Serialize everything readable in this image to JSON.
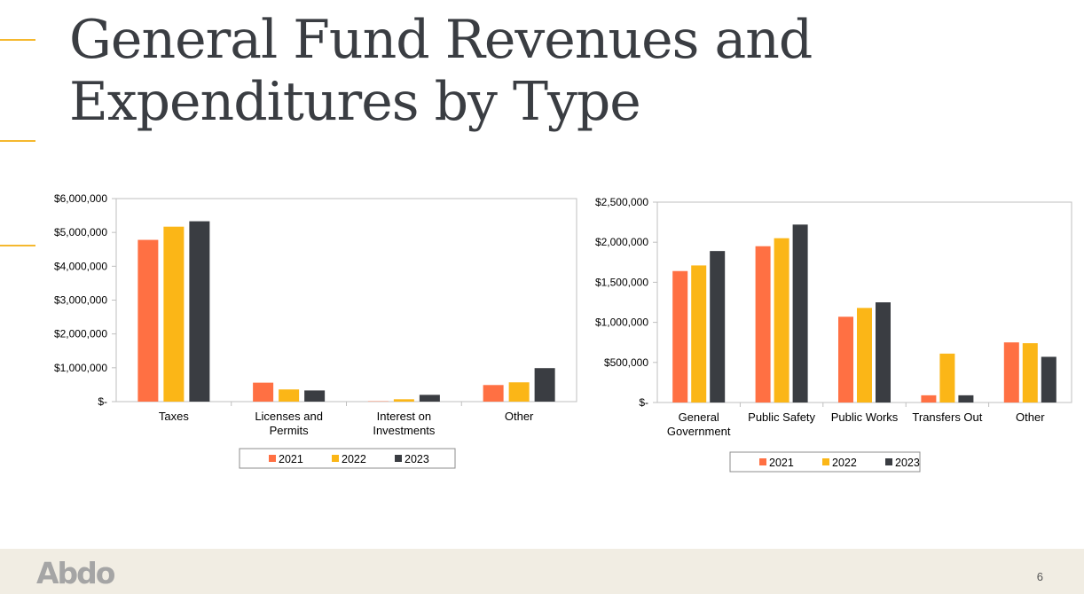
{
  "slide": {
    "title_line1": "General Fund Revenues and",
    "title_line2": "Expenditures by Type",
    "page_number": "6",
    "logo_text": "Abdo"
  },
  "colors": {
    "2021": "#ff7043",
    "2022": "#fbb617",
    "2023": "#3a3d42",
    "accent": "#f5b82e",
    "footer_bg": "#f1ede3"
  },
  "chart_data": [
    {
      "type": "bar",
      "categories": [
        "Taxes",
        "Licenses and Permits",
        "Interest on Investments",
        "Other"
      ],
      "series": [
        {
          "name": "2021",
          "values": [
            4780000,
            560000,
            10000,
            490000
          ]
        },
        {
          "name": "2022",
          "values": [
            5170000,
            360000,
            70000,
            570000
          ]
        },
        {
          "name": "2023",
          "values": [
            5330000,
            330000,
            200000,
            990000
          ]
        }
      ],
      "ylim": [
        0,
        6000000
      ],
      "yticks": [
        0,
        1000000,
        2000000,
        3000000,
        4000000,
        5000000,
        6000000
      ],
      "ytick_labels": [
        "$-",
        "$1,000,000",
        "$2,000,000",
        "$3,000,000",
        "$4,000,000",
        "$5,000,000",
        "$6,000,000"
      ],
      "legend": "bottom"
    },
    {
      "type": "bar",
      "categories": [
        "General Government",
        "Public Safety",
        "Public Works",
        "Transfers Out",
        "Other"
      ],
      "series": [
        {
          "name": "2021",
          "values": [
            1640000,
            1950000,
            1070000,
            90000,
            750000
          ]
        },
        {
          "name": "2022",
          "values": [
            1710000,
            2050000,
            1180000,
            610000,
            740000
          ]
        },
        {
          "name": "2023",
          "values": [
            1890000,
            2220000,
            1250000,
            90000,
            570000
          ]
        }
      ],
      "ylim": [
        0,
        2500000
      ],
      "yticks": [
        0,
        500000,
        1000000,
        1500000,
        2000000,
        2500000
      ],
      "ytick_labels": [
        "$-",
        "$500,000",
        "$1,000,000",
        "$1,500,000",
        "$2,000,000",
        "$2,500,000"
      ],
      "legend": "bottom"
    }
  ]
}
